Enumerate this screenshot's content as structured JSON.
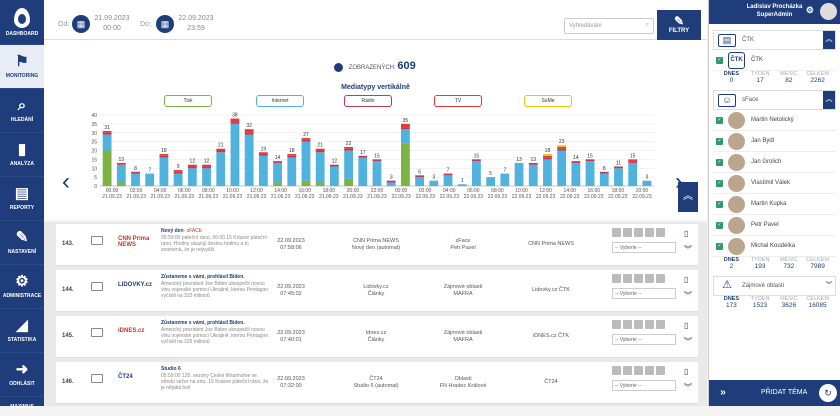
{
  "nav": {
    "logo_label": "DASHBOARD",
    "items": [
      {
        "label": "MONITORING",
        "icon": "binoculars-icon",
        "glyph": "⚑",
        "active": true
      },
      {
        "label": "HLEDÁNÍ",
        "icon": "search-icon",
        "glyph": "⌕"
      },
      {
        "label": "ANALÝZA",
        "icon": "bar-chart-icon",
        "glyph": "▮"
      },
      {
        "label": "REPORTY",
        "icon": "book-icon",
        "glyph": "▤"
      },
      {
        "label": "NASTAVENÍ",
        "icon": "wrench-icon",
        "glyph": "✎"
      },
      {
        "label": "ADMINISTRACE",
        "icon": "gear-icon",
        "glyph": "⚙"
      },
      {
        "label": "STATISTIKA",
        "icon": "area-chart-icon",
        "glyph": "◢"
      },
      {
        "label": "ODHLÁSIT",
        "icon": "logout-icon",
        "glyph": "➜"
      },
      {
        "label": "MAXIMUS",
        "icon": "",
        "glyph": ""
      }
    ]
  },
  "top": {
    "from_label": "Od:",
    "from_date": "21.09.2023",
    "from_time": "00:00",
    "to_label": "Do:",
    "to_date": "22.09.2023",
    "to_time": "23:59",
    "search_placeholder": "Vyhledávání",
    "filters_label": "FILTRY"
  },
  "stats": {
    "views_label": "ZOBRAZENÝCH:",
    "views_value": "609"
  },
  "chart_data": {
    "type": "bar",
    "title": "Mediatypy vertikálně",
    "legend": [
      "Tisk",
      "Internet",
      "Rádio",
      "TV",
      "SoMe"
    ],
    "colors": {
      "Tisk": "#7cb342",
      "Internet": "#4fb3de",
      "Rádio": "#c0395b",
      "TV": "#e53935",
      "SoMe": "#f4c20d"
    },
    "ylim": [
      0,
      40
    ],
    "y_ticks": [
      0,
      5,
      10,
      15,
      20,
      25,
      30,
      35,
      40
    ],
    "totals": [
      31,
      13,
      8,
      7,
      18,
      9,
      12,
      12,
      21,
      38,
      32,
      19,
      14,
      18,
      27,
      21,
      12,
      22,
      17,
      15,
      3,
      35,
      6,
      3,
      7,
      1,
      15,
      5,
      7,
      13,
      13,
      18,
      23,
      14,
      15,
      8,
      11,
      15,
      3
    ],
    "series": [
      {
        "name": "Tisk",
        "values": [
          20,
          2,
          0,
          0,
          0,
          0,
          0,
          0,
          0,
          0,
          0,
          0,
          2,
          0,
          3,
          2,
          0,
          4,
          0,
          0,
          0,
          24,
          0,
          0,
          0,
          0,
          0,
          0,
          0,
          0,
          0,
          0,
          0,
          0,
          0,
          0,
          0,
          0,
          0
        ]
      },
      {
        "name": "Internet",
        "values": [
          9,
          10,
          7,
          7,
          16,
          7,
          10,
          10,
          19,
          35,
          29,
          17,
          11,
          16,
          22,
          17,
          11,
          16,
          16,
          14,
          2,
          8,
          5,
          3,
          6,
          1,
          14,
          5,
          7,
          13,
          12,
          15,
          20,
          13,
          14,
          7,
          10,
          13,
          3
        ]
      },
      {
        "name": "Rádio",
        "values": [
          1,
          0,
          1,
          0,
          1,
          1,
          1,
          1,
          1,
          1,
          1,
          1,
          1,
          1,
          1,
          1,
          1,
          1,
          1,
          1,
          1,
          1,
          1,
          0,
          1,
          0,
          1,
          0,
          0,
          0,
          1,
          1,
          1,
          1,
          1,
          1,
          1,
          1,
          0
        ]
      },
      {
        "name": "TV",
        "values": [
          1,
          1,
          0,
          0,
          1,
          1,
          1,
          1,
          1,
          2,
          2,
          1,
          0,
          1,
          1,
          1,
          0,
          1,
          0,
          0,
          0,
          2,
          0,
          0,
          0,
          0,
          0,
          0,
          0,
          0,
          0,
          1,
          1,
          0,
          0,
          0,
          0,
          1,
          0
        ]
      },
      {
        "name": "SoMe",
        "values": [
          0,
          0,
          0,
          0,
          0,
          0,
          0,
          0,
          0,
          0,
          0,
          0,
          0,
          0,
          0,
          0,
          0,
          0,
          0,
          0,
          0,
          0,
          0,
          0,
          0,
          0,
          0,
          0,
          0,
          0,
          0,
          1,
          1,
          0,
          0,
          0,
          0,
          0,
          0
        ]
      }
    ],
    "x_labels": [
      [
        "00:00",
        "21.09.23"
      ],
      [
        "02:00",
        "21.09.23"
      ],
      [
        "04:00",
        "21.09.23"
      ],
      [
        "06:00",
        "21.09.23"
      ],
      [
        "08:00",
        "21.09.23"
      ],
      [
        "10:00",
        "21.09.23"
      ],
      [
        "12:00",
        "21.09.23"
      ],
      [
        "14:00",
        "21.09.23"
      ],
      [
        "16:00",
        "21.09.23"
      ],
      [
        "18:00",
        "21.09.23"
      ],
      [
        "20:00",
        "21.09.23"
      ],
      [
        "22:00",
        "21.09.23"
      ],
      [
        "00:00",
        "22.09.23"
      ],
      [
        "02:00",
        "22.09.23"
      ],
      [
        "04:00",
        "22.09.23"
      ],
      [
        "06:00",
        "22.09.23"
      ],
      [
        "08:00",
        "22.09.23"
      ],
      [
        "10:00",
        "22.09.23"
      ],
      [
        "12:00",
        "22.09.23"
      ],
      [
        "14:00",
        "22.09.23"
      ],
      [
        "16:00",
        "22.09.23"
      ],
      [
        "18:00",
        "22.09.23"
      ],
      [
        "20:00",
        "22.09.23"
      ]
    ]
  },
  "rows": [
    {
      "num": "143.",
      "logo": "CNN Prima NEWS",
      "logo_color": "#c0392b",
      "title": "Nový den",
      "tag": "- sFACE",
      "desc": "05:59:00 páteční ráno, 06:00 15 Krásné páteční ráno. Hodiny ukazují šestou hodinu a to znamená, že je nejvyšší",
      "date": "22.09.2023",
      "time": "07:58:06",
      "source": "CNN Prima NEWS",
      "sub": "Nový den (automat)",
      "topic": "sFace",
      "topic2": "Petr Pavel",
      "agency": "CNN Prima NEWS",
      "select": "-- Vyberte --"
    },
    {
      "num": "144.",
      "logo": "LIDOVKY.cz",
      "logo_color": "#1f3d7a",
      "title": "Zůstaneme s vámi, prohlásil Biden.",
      "tag": "",
      "desc": "Americký prezident Joe Biden ubezpečil novou vlnu vojenské pomoci Ukrajině, kterou Pentagon vyčíslil na 325 milionů",
      "date": "22.09.2023",
      "time": "07:45:02",
      "source": "Lidovky.cz",
      "sub": "Články",
      "topic": "Zájmové oblasti",
      "topic2": "MAFRA",
      "agency": "Lidovky.cz ČTK",
      "select": "-- Vyberte --"
    },
    {
      "num": "145.",
      "logo": "iDNES.cz",
      "logo_color": "#c0392b",
      "title": "Zůstaneme s vámi, prohlásil Biden.",
      "tag": "",
      "desc": "Americký prezident Joe Biden ubezpečil novou vlnu vojenské pomoci Ukrajině, kterou Pentagon vyčíslil na 325 milionů",
      "date": "22.09.2023",
      "time": "07:40:01",
      "source": "Idnes.cz",
      "sub": "Články",
      "topic": "Zájmové oblasti",
      "topic2": "MAFRA",
      "agency": "iDNES.cz ČTK",
      "select": "-- Vyberte --"
    },
    {
      "num": "146.",
      "logo": "ČT24",
      "logo_color": "#1f3d7a",
      "title": "Studio 6",
      "tag": "",
      "desc": "05:59:00 128. sezony České filharmonie ve středu večer na ertu. 15 Krásné páteční ráno, že je nějaká bolí",
      "date": "22.09.2023",
      "time": "07:32:00",
      "source": "ČT24",
      "sub": "Studio 6 (automat)",
      "topic": "Oblasti",
      "topic2": "FN Hradec Králové",
      "agency": "ČT24",
      "select": "-- Vyberte --"
    }
  ],
  "right": {
    "user_name": "Ladislav Procházka",
    "user_role": "SuperAdmin",
    "panel1": {
      "title": "ČTK",
      "item": "ČTK"
    },
    "panel1_stats": {
      "labels": [
        "DNES",
        "TÝDEN",
        "MĚSÍC",
        "CELKEM"
      ],
      "values": [
        "0",
        "17",
        "82",
        "2262"
      ]
    },
    "panel2": {
      "title": "sFace"
    },
    "people": [
      "Martin Netolický",
      "Jan Bydl",
      "Jan Grolich",
      "Vlastimil Válek",
      "Martin Kupka",
      "Petr Pavel",
      "Michal Koudelka"
    ],
    "panel2_stats": {
      "labels": [
        "DNES",
        "TÝDEN",
        "MĚSÍC",
        "CELKEM"
      ],
      "values": [
        "2",
        "193",
        "732",
        "7989"
      ]
    },
    "panel3": {
      "title": "Zájmové oblasti"
    },
    "panel3_stats": {
      "labels": [
        "DNES",
        "TÝDEN",
        "MĚSÍC",
        "CELKEM"
      ],
      "values": [
        "173",
        "1523",
        "3626",
        "16085"
      ]
    },
    "add_label": "PŘIDAT TÉMA"
  }
}
